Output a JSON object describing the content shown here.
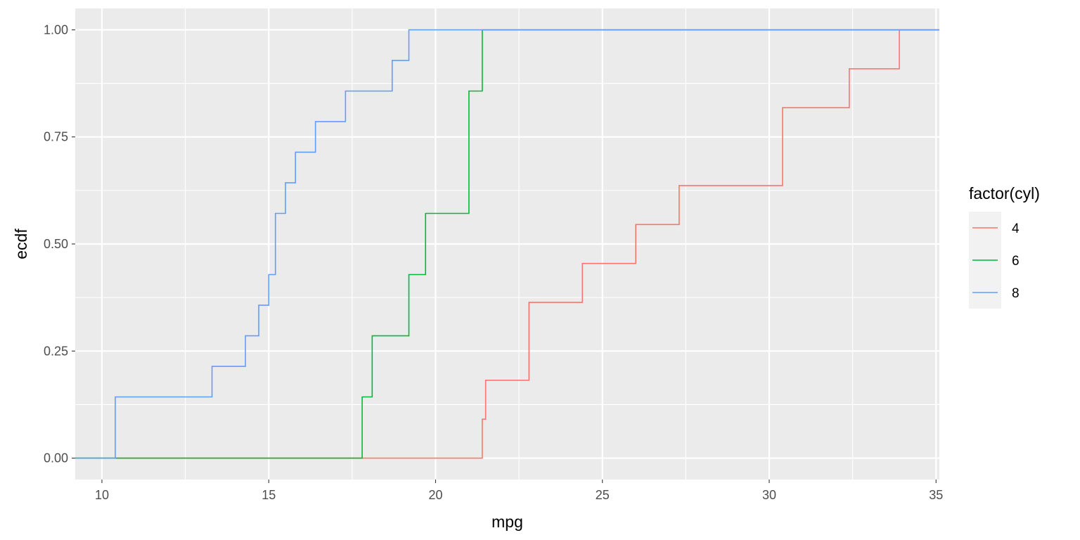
{
  "chart_data": {
    "type": "line",
    "step": true,
    "title": "",
    "xlabel": "mpg",
    "ylabel": "ecdf",
    "xlim": [
      9.2,
      35.1
    ],
    "ylim": [
      -0.05,
      1.05
    ],
    "x_ticks": [
      10,
      15,
      20,
      25,
      30,
      35
    ],
    "x_tick_labels": [
      "10",
      "15",
      "20",
      "25",
      "30",
      "35"
    ],
    "y_ticks": [
      0,
      0.25,
      0.5,
      0.75,
      1
    ],
    "y_tick_labels": [
      "0.00",
      "0.25",
      "0.50",
      "0.75",
      "1.00"
    ],
    "grid": true,
    "panel_background": "#EBEBEB",
    "legend": {
      "title": "factor(cyl)",
      "position": "right"
    },
    "series": [
      {
        "name": "4",
        "color": "#F8766D",
        "x": [
          21.4,
          21.5,
          22.8,
          24.4,
          26.0,
          27.3,
          30.4,
          32.4,
          33.9
        ],
        "y": [
          0.0909,
          0.1818,
          0.3636,
          0.4545,
          0.5455,
          0.6364,
          0.8182,
          0.9091,
          1.0
        ]
      },
      {
        "name": "6",
        "color": "#00BA38",
        "x": [
          17.8,
          18.1,
          19.2,
          19.7,
          21.0,
          21.4
        ],
        "y": [
          0.1429,
          0.2857,
          0.4286,
          0.5714,
          0.8571,
          1.0
        ]
      },
      {
        "name": "8",
        "color": "#619CFF",
        "x": [
          10.4,
          13.3,
          14.3,
          14.7,
          15.0,
          15.2,
          15.5,
          15.8,
          16.4,
          17.3,
          18.7,
          19.2
        ],
        "y": [
          0.1429,
          0.2143,
          0.2857,
          0.3571,
          0.4286,
          0.5714,
          0.6429,
          0.7143,
          0.7857,
          0.8571,
          0.9286,
          1.0
        ]
      }
    ]
  }
}
